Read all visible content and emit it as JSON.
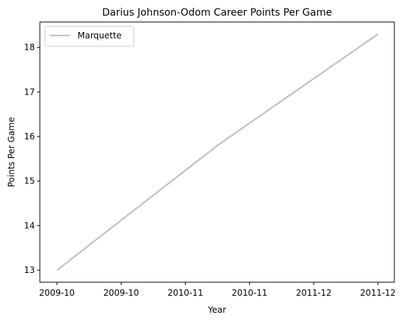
{
  "chart_data": {
    "type": "line",
    "title": "Darius Johnson-Odom Career Points Per Game",
    "xlabel": "Year",
    "ylabel": "Points Per Game",
    "x": [
      "2009-10",
      "2009-10",
      "2010-11",
      "2010-11",
      "2011-12",
      "2011-12"
    ],
    "x_tick_labels": [
      "2009-10",
      "2009-10",
      "2010-11",
      "2010-11",
      "2011-12",
      "2011-12"
    ],
    "y_ticks": [
      13,
      14,
      15,
      16,
      17,
      18
    ],
    "ylim": [
      12.73,
      18.57
    ],
    "grid": false,
    "legend_position": "upper-left",
    "series": [
      {
        "name": "Marquette",
        "color": "#c0c0c0",
        "points": [
          {
            "season": "2009-10",
            "value": 13.0
          },
          {
            "season": "2010-11",
            "value": 15.8
          },
          {
            "season": "2011-12",
            "value": 18.3
          }
        ]
      }
    ]
  }
}
